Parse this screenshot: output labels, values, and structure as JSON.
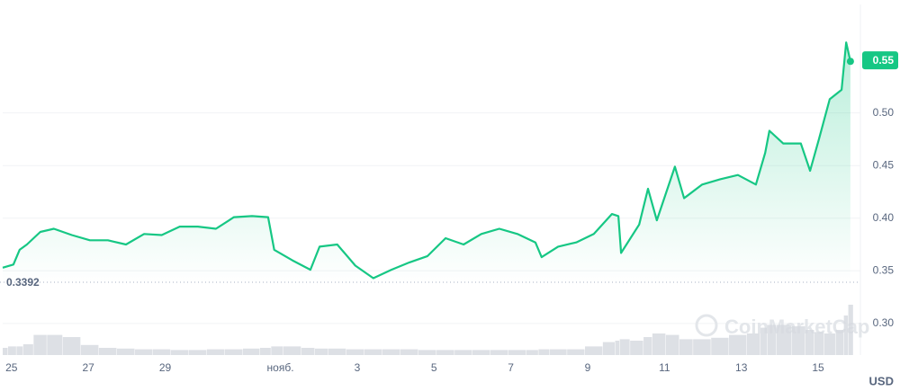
{
  "chart_data": {
    "type": "line",
    "x": [
      -0.23,
      0.05,
      0.21,
      0.4,
      0.75,
      1.1,
      1.57,
      2.04,
      2.51,
      2.98,
      3.45,
      3.91,
      4.38,
      4.85,
      5.32,
      5.79,
      6.26,
      6.68,
      6.84,
      7.31,
      7.78,
      8.02,
      8.48,
      8.95,
      9.42,
      9.89,
      10.36,
      10.83,
      11.3,
      11.77,
      12.23,
      12.7,
      13.17,
      13.64,
      13.8,
      14.23,
      14.7,
      15.16,
      15.63,
      15.8,
      15.87,
      16.34,
      16.57,
      16.8,
      17.27,
      17.51,
      17.98,
      18.45,
      18.91,
      19.38,
      19.62,
      19.73,
      20.09,
      20.55,
      20.79,
      21.02,
      21.3,
      21.61,
      21.73,
      21.84
    ],
    "values": [
      0.353,
      0.356,
      0.37,
      0.375,
      0.387,
      0.39,
      0.384,
      0.379,
      0.379,
      0.375,
      0.385,
      0.384,
      0.392,
      0.392,
      0.39,
      0.401,
      0.402,
      0.401,
      0.37,
      0.36,
      0.351,
      0.373,
      0.375,
      0.355,
      0.343,
      0.351,
      0.358,
      0.364,
      0.381,
      0.375,
      0.385,
      0.39,
      0.385,
      0.377,
      0.363,
      0.373,
      0.377,
      0.385,
      0.404,
      0.402,
      0.367,
      0.394,
      0.428,
      0.398,
      0.449,
      0.419,
      0.432,
      0.437,
      0.441,
      0.432,
      0.462,
      0.483,
      0.471,
      0.471,
      0.445,
      0.475,
      0.513,
      0.522,
      0.567,
      0.549
    ],
    "volume": [
      10,
      12,
      12,
      15,
      28,
      28,
      25,
      14,
      10,
      9,
      8,
      8,
      7,
      7,
      8,
      8,
      9,
      10,
      12,
      12,
      10,
      9,
      9,
      8,
      8,
      8,
      8,
      7,
      7,
      7,
      7,
      7,
      7,
      7,
      8,
      8,
      8,
      12,
      18,
      20,
      22,
      20,
      25,
      30,
      28,
      22,
      22,
      24,
      28,
      30,
      38,
      42,
      42,
      40,
      35,
      32,
      30,
      35,
      55,
      70
    ],
    "volume_lim": [
      0,
      100
    ],
    "color": "#16c784",
    "xlim": [
      -0.23,
      22.1
    ],
    "xticks": [
      {
        "value": 0,
        "label": "25"
      },
      {
        "value": 2,
        "label": "27"
      },
      {
        "value": 4,
        "label": "29"
      },
      {
        "value": 7,
        "label": "нояб."
      },
      {
        "value": 9,
        "label": "3"
      },
      {
        "value": 11,
        "label": "5"
      },
      {
        "value": 13,
        "label": "7"
      },
      {
        "value": 15,
        "label": "9"
      },
      {
        "value": 17,
        "label": "11"
      },
      {
        "value": 19,
        "label": "13"
      },
      {
        "value": 21,
        "label": "15"
      }
    ],
    "ylim": [
      0.27,
      0.603
    ],
    "yticks": [
      {
        "value": 0.3,
        "label": "0.30"
      },
      0.35,
      {
        "value": 0.4,
        "label": "0.40"
      },
      0.45,
      {
        "value": 0.5,
        "label": "0.50"
      }
    ],
    "grid": true,
    "open_price": 0.3392,
    "price_label": 0.55,
    "currency": "USD",
    "watermark": "CoinMarketCap"
  }
}
